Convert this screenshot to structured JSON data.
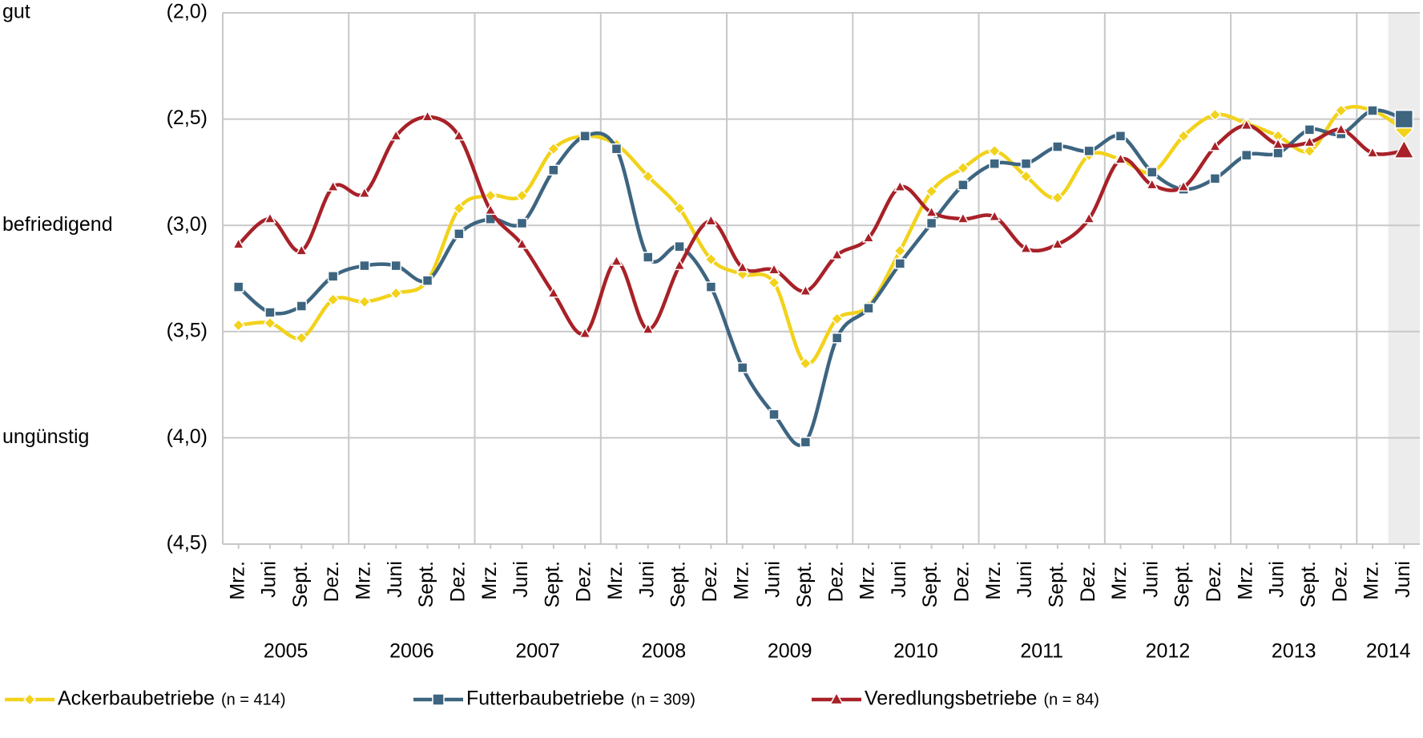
{
  "chart_data": {
    "type": "line",
    "categories": [
      "Mrz.",
      "Juni",
      "Sept.",
      "Dez.",
      "Mrz.",
      "Juni",
      "Sept.",
      "Dez.",
      "Mrz.",
      "Juni",
      "Sept.",
      "Dez.",
      "Mrz.",
      "Juni",
      "Sept.",
      "Dez.",
      "Mrz.",
      "Juni",
      "Sept.",
      "Dez.",
      "Mrz.",
      "Juni",
      "Sept.",
      "Dez.",
      "Mrz.",
      "Juni",
      "Sept.",
      "Dez.",
      "Mrz.",
      "Juni",
      "Sept.",
      "Dez.",
      "Mrz.",
      "Juni",
      "Sept.",
      "Dez.",
      "Mrz.",
      "Juni"
    ],
    "years": [
      "2005",
      "2006",
      "2007",
      "2008",
      "2009",
      "2010",
      "2011",
      "2012",
      "2013",
      "2014"
    ],
    "ylim": [
      2,
      4.5
    ],
    "y_inverted": true,
    "yticks": [
      {
        "value": 2,
        "label": "(2,0)"
      },
      {
        "value": 2.5,
        "label": "(2,5)"
      },
      {
        "value": 3,
        "label": "(3,0)"
      },
      {
        "value": 3.5,
        "label": "(3,5)"
      },
      {
        "value": 4,
        "label": "(4,0)"
      },
      {
        "value": 4.5,
        "label": "(4,5)"
      }
    ],
    "rating_labels": [
      {
        "value": 2,
        "label": "gut"
      },
      {
        "value": 3,
        "label": "befriedigend"
      },
      {
        "value": 4,
        "label": "ungünstig"
      }
    ],
    "grid": true,
    "series": [
      {
        "name": "Ackerbaubetriebe",
        "n_label": "(n = 414)",
        "color": "#f2d21b",
        "marker": "diamond",
        "values": [
          3.47,
          3.46,
          3.53,
          3.35,
          3.36,
          3.32,
          3.26,
          2.92,
          2.86,
          2.86,
          2.64,
          2.58,
          2.62,
          2.77,
          2.92,
          3.16,
          3.23,
          3.27,
          3.65,
          3.44,
          3.38,
          3.12,
          2.84,
          2.73,
          2.65,
          2.77,
          2.87,
          2.67,
          2.69,
          2.75,
          2.58,
          2.48,
          2.52,
          2.58,
          2.65,
          2.46,
          2.46,
          2.55
        ]
      },
      {
        "name": "Futterbaubetriebe",
        "n_label": "(n = 309)",
        "color": "#3d6580",
        "marker": "square",
        "values": [
          3.29,
          3.41,
          3.38,
          3.24,
          3.19,
          3.19,
          3.26,
          3.04,
          2.97,
          2.99,
          2.74,
          2.58,
          2.64,
          3.15,
          3.1,
          3.29,
          3.67,
          3.89,
          4.02,
          3.53,
          3.39,
          3.18,
          2.99,
          2.81,
          2.71,
          2.71,
          2.63,
          2.65,
          2.58,
          2.75,
          2.83,
          2.78,
          2.67,
          2.66,
          2.55,
          2.57,
          2.46,
          2.5
        ]
      },
      {
        "name": "Veredlungsbetriebe",
        "n_label": "(n = 84)",
        "color": "#a82128",
        "marker": "triangle",
        "values": [
          3.09,
          2.97,
          3.12,
          2.82,
          2.85,
          2.58,
          2.49,
          2.58,
          2.93,
          3.09,
          3.32,
          3.51,
          3.17,
          3.49,
          3.19,
          2.98,
          3.2,
          3.21,
          3.31,
          3.14,
          3.06,
          2.82,
          2.94,
          2.97,
          2.96,
          3.11,
          3.09,
          2.97,
          2.69,
          2.81,
          2.82,
          2.63,
          2.53,
          2.62,
          2.61,
          2.55,
          2.66,
          2.65
        ]
      }
    ]
  }
}
